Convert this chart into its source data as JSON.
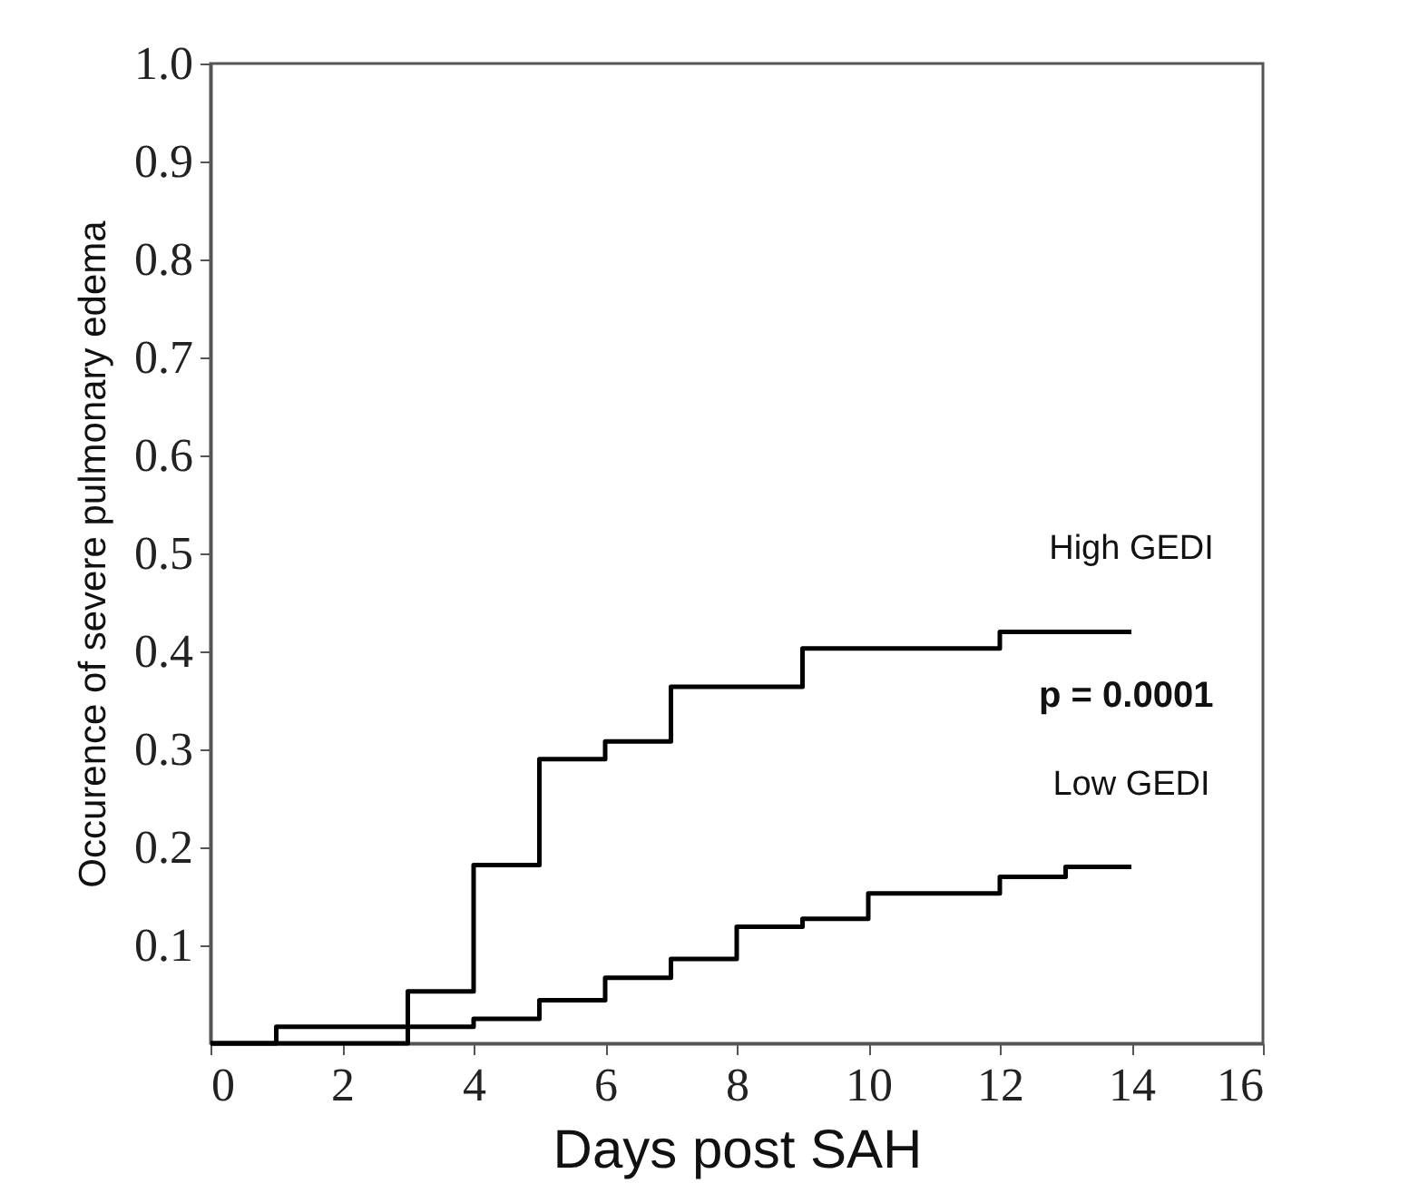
{
  "chart_data": {
    "type": "step",
    "xlabel": "Days post SAH",
    "ylabel": "Occurence of severe pulmonary edema",
    "series": [
      {
        "name": "High GEDI",
        "color": "#000000",
        "x": [
          0,
          3,
          4,
          5,
          6,
          7,
          9,
          12,
          14
        ],
        "values": [
          0,
          0.053,
          0.182,
          0.29,
          0.308,
          0.364,
          0.403,
          0.42,
          0.42
        ]
      },
      {
        "name": "Low GEDI",
        "color": "#000000",
        "x": [
          0,
          1,
          4,
          5,
          6,
          7,
          8,
          9,
          10,
          12,
          13,
          14
        ],
        "values": [
          0,
          0.017,
          0.025,
          0.044,
          0.067,
          0.086,
          0.119,
          0.127,
          0.153,
          0.17,
          0.18,
          0.18
        ]
      }
    ],
    "annotations": [
      "p = 0.0001"
    ],
    "xlim": [
      0,
      16
    ],
    "xticks": [
      0,
      2,
      4,
      6,
      8,
      10,
      12,
      14,
      16
    ],
    "ylim": [
      0,
      1
    ],
    "yticks": [
      0.1,
      0.2,
      0.3,
      0.4,
      0.5,
      0.6,
      0.7,
      0.8,
      0.9,
      {
        "value": 1,
        "label": "1.0"
      }
    ],
    "grid": false,
    "legend": false,
    "marker": "none",
    "line_style": "solid"
  }
}
